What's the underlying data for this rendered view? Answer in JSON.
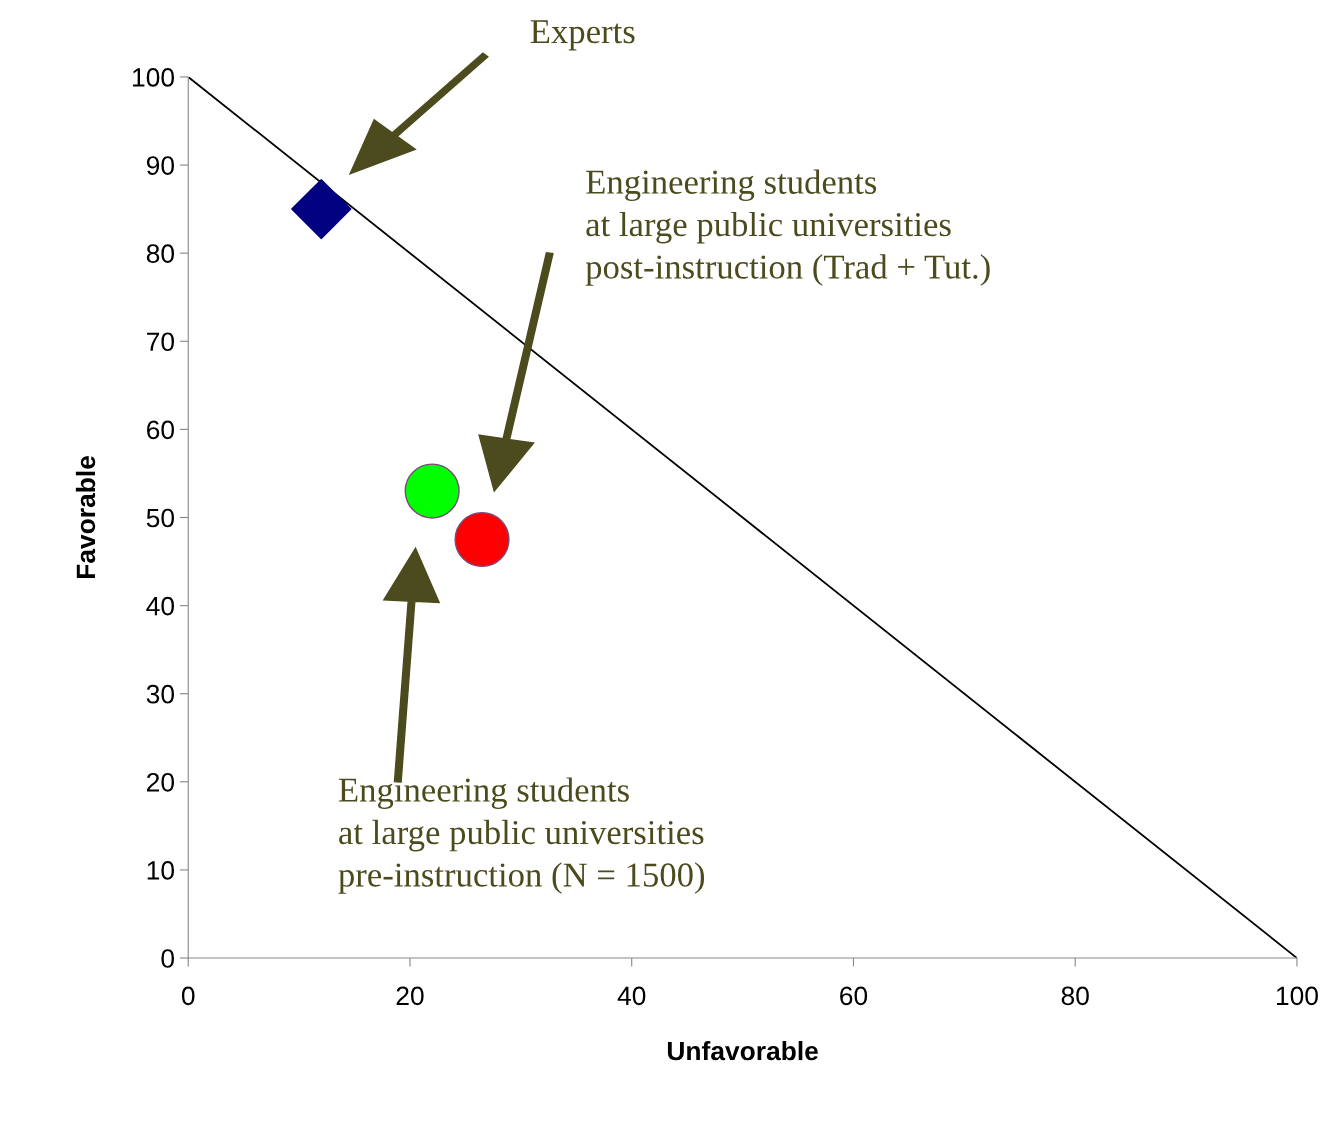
{
  "chart_data": {
    "type": "scatter",
    "xlabel": "Unfavorable",
    "ylabel": "Favorable",
    "xlim": [
      0,
      100
    ],
    "ylim": [
      0,
      100
    ],
    "xticks": [
      0,
      20,
      40,
      60,
      80,
      100
    ],
    "yticks": [
      0,
      10,
      20,
      30,
      40,
      50,
      60,
      70,
      80,
      90,
      100
    ],
    "grid": false,
    "legend": false,
    "series": [
      {
        "type": "line",
        "color": "#000000",
        "x": [
          0,
          100
        ],
        "values": [
          100,
          0
        ],
        "marker": "none"
      },
      {
        "type": "scatter",
        "color": "#000080",
        "x": [
          12
        ],
        "values": [
          85
        ],
        "marker": "diamond"
      },
      {
        "type": "scatter",
        "color": "#00ff00",
        "x": [
          22
        ],
        "values": [
          53
        ],
        "marker": "circle"
      },
      {
        "type": "scatter",
        "color": "#ff0000",
        "x": [
          26.5
        ],
        "values": [
          47.5
        ],
        "marker": "circle"
      }
    ],
    "annotations": [
      "Experts",
      "Engineering students\nat large public universities\npost-instruction (Trad + Tut.)",
      "Engineering students\nat large public universities\npre-instruction (N = 1500)"
    ]
  }
}
